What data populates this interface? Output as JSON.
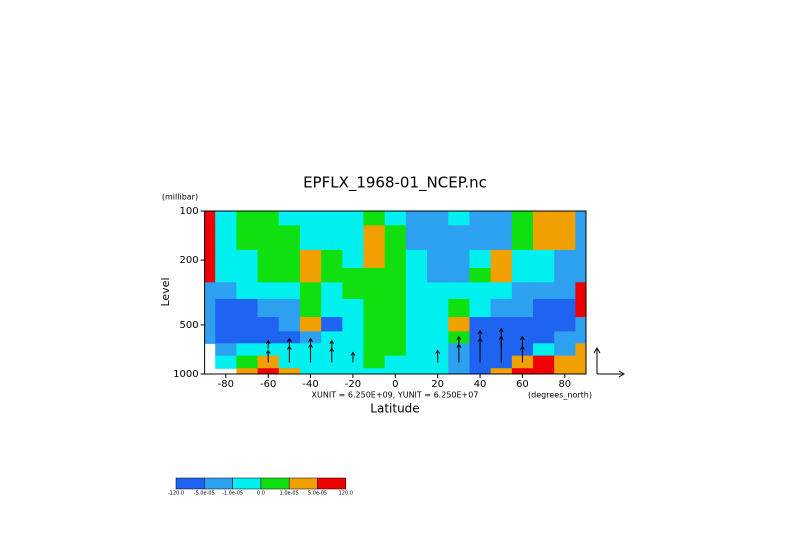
{
  "chart_data": {
    "type": "contour",
    "title": "EPFLX_1968-01_NCEP.nc",
    "y_unit_label": "(millibar)",
    "ylabel": "Level",
    "xlabel": "Latitude",
    "x_unit_label": "(degrees_north)",
    "vector_scale_label": "XUNIT = 6.250E+09, YUNIT = 6.250E+07",
    "xlim": [
      -90,
      90
    ],
    "xticks": [
      -80,
      -60,
      -40,
      -20,
      0,
      20,
      40,
      60,
      80
    ],
    "ylim": [
      1000,
      100
    ],
    "ylog": true,
    "yticks": [
      100,
      200,
      500,
      1000
    ],
    "levels": [
      {
        "value": -120,
        "label": "-120.0"
      },
      {
        "value": -5e-05,
        "label": "-5.0e-05"
      },
      {
        "value": -1e-05,
        "label": "-1.0e-05"
      },
      {
        "value": 0,
        "label": "0.0"
      },
      {
        "value": 1e-05,
        "label": "1.0e-05"
      },
      {
        "value": 5e-05,
        "label": "5.0e-05"
      },
      {
        "value": 120,
        "label": "120.0"
      }
    ],
    "colors": [
      "#1e64f0",
      "#2ea0f0",
      "#00f0f0",
      "#10e010",
      "#f0a000",
      "#f00000"
    ],
    "grid": {
      "x": [
        -90,
        -80,
        -70,
        -60,
        -50,
        -40,
        -30,
        -20,
        -10,
        0,
        10,
        20,
        30,
        40,
        50,
        60,
        70,
        80,
        90
      ],
      "y": [
        100,
        150,
        200,
        250,
        300,
        400,
        500,
        600,
        700,
        850,
        1000
      ],
      "z": [
        [
          0.0001,
          -5e-06,
          5e-06,
          5e-06,
          -5e-06,
          -5e-06,
          -5e-06,
          -5e-06,
          5e-06,
          -5e-06,
          -3e-05,
          -3e-05,
          -5e-06,
          -3e-05,
          -3e-05,
          5e-06,
          3e-05,
          3e-05,
          -3e-05
        ],
        [
          0.0001,
          -5e-06,
          5e-06,
          5e-06,
          5e-06,
          -5e-06,
          -5e-06,
          -5e-06,
          3e-05,
          5e-06,
          -3e-05,
          -3e-05,
          -3e-05,
          -3e-05,
          -3e-05,
          5e-06,
          3e-05,
          3e-05,
          -3e-05
        ],
        [
          0.0001,
          -5e-06,
          -5e-06,
          5e-06,
          5e-06,
          3e-05,
          5e-06,
          -5e-06,
          3e-05,
          5e-06,
          -5e-06,
          -3e-05,
          -3e-05,
          -5e-06,
          3e-05,
          -5e-06,
          -5e-06,
          -3e-05,
          -3e-05
        ],
        [
          0.0001,
          -5e-06,
          -5e-06,
          5e-06,
          5e-06,
          3e-05,
          5e-06,
          5e-06,
          5e-06,
          5e-06,
          -5e-06,
          -3e-05,
          -3e-05,
          5e-06,
          3e-05,
          -5e-06,
          -5e-06,
          -3e-05,
          -3e-05
        ],
        [
          -3e-05,
          -3e-05,
          -5e-06,
          -5e-06,
          -5e-06,
          5e-06,
          -5e-06,
          5e-06,
          5e-06,
          5e-06,
          -5e-06,
          -5e-06,
          -5e-06,
          -5e-06,
          -5e-06,
          -3e-05,
          -3e-05,
          -3e-05,
          0.0001
        ],
        [
          -3e-05,
          -0.0001,
          -0.0001,
          -3e-05,
          -3e-05,
          5e-06,
          -5e-06,
          -5e-06,
          5e-06,
          5e-06,
          -5e-06,
          -5e-06,
          5e-06,
          -5e-06,
          -3e-05,
          -3e-05,
          -0.0001,
          -0.0001,
          0.0001
        ],
        [
          -3e-05,
          -0.0001,
          -0.0001,
          -0.0001,
          -3e-05,
          3e-05,
          -0.0001,
          -5e-06,
          5e-06,
          5e-06,
          -5e-06,
          -5e-06,
          3e-05,
          -0.0001,
          -0.0001,
          -0.0001,
          -0.0001,
          -0.0001,
          -3e-05
        ],
        [
          -3e-05,
          -0.0001,
          -0.0001,
          -0.0001,
          -0.0001,
          -3e-05,
          -5e-06,
          -5e-06,
          5e-06,
          5e-06,
          -5e-06,
          -5e-06,
          5e-06,
          -0.0001,
          -0.0001,
          -0.0001,
          -0.0001,
          -3e-05,
          -3e-05
        ],
        [
          null,
          -3e-05,
          -5e-06,
          -5e-06,
          -5e-06,
          -5e-06,
          -5e-06,
          -5e-06,
          5e-06,
          5e-06,
          -5e-06,
          -5e-06,
          -3e-05,
          -0.0001,
          -0.0001,
          -0.0001,
          -5e-06,
          -3e-05,
          3e-05
        ],
        [
          null,
          -5e-06,
          5e-06,
          3e-05,
          -5e-06,
          -5e-06,
          -5e-06,
          -5e-06,
          5e-06,
          -5e-06,
          -5e-06,
          -5e-06,
          -3e-05,
          -0.0001,
          -0.0001,
          3e-05,
          0.0001,
          3e-05,
          3e-05
        ],
        [
          null,
          null,
          3e-05,
          0.0001,
          3e-05,
          -5e-06,
          -5e-06,
          -5e-06,
          -5e-06,
          -5e-06,
          -5e-06,
          -5e-06,
          -3e-05,
          -0.0001,
          3e-05,
          0.0001,
          0.0001,
          3e-05,
          3e-05
        ]
      ]
    },
    "vectors": {
      "x": [
        -60,
        -50,
        -40,
        -30,
        -20,
        20,
        30,
        40,
        50,
        60,
        -60,
        -50,
        -40,
        -30,
        30,
        40,
        50,
        60
      ],
      "y": [
        850,
        850,
        850,
        850,
        850,
        850,
        850,
        850,
        850,
        850,
        700,
        700,
        700,
        700,
        700,
        700,
        700,
        700
      ],
      "u": [
        0,
        0,
        0,
        0,
        0,
        0,
        0,
        0,
        0,
        0,
        0,
        0,
        0,
        0,
        0,
        0,
        0,
        0
      ],
      "v": [
        0.6,
        0.8,
        0.9,
        0.7,
        0.5,
        0.6,
        0.9,
        1.2,
        1.3,
        0.8,
        0.4,
        0.5,
        0.5,
        0.4,
        0.6,
        0.9,
        1.0,
        0.6
      ]
    }
  }
}
